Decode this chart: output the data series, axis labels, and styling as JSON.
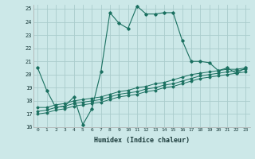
{
  "xlabel": "Humidex (Indice chaleur)",
  "bg_color": "#cce8e8",
  "grid_color": "#aacccc",
  "line_color": "#1a7060",
  "xlim": [
    -0.5,
    23.5
  ],
  "ylim": [
    16,
    25.3
  ],
  "xticks": [
    0,
    1,
    2,
    3,
    4,
    5,
    6,
    7,
    8,
    9,
    10,
    11,
    12,
    13,
    14,
    15,
    16,
    17,
    18,
    19,
    20,
    21,
    22,
    23
  ],
  "yticks": [
    16,
    17,
    18,
    19,
    20,
    21,
    22,
    23,
    24,
    25
  ],
  "series": [
    [
      20.5,
      18.8,
      17.5,
      17.6,
      18.3,
      16.2,
      17.4,
      20.2,
      24.7,
      23.9,
      23.5,
      25.2,
      24.6,
      24.6,
      24.7,
      24.7,
      22.6,
      21.0,
      21.0,
      20.9,
      20.3,
      20.5,
      20.1,
      20.5
    ],
    [
      17.5,
      17.5,
      17.7,
      17.8,
      18.0,
      18.1,
      18.2,
      18.3,
      18.5,
      18.7,
      18.8,
      19.0,
      19.1,
      19.3,
      19.4,
      19.6,
      19.8,
      20.0,
      20.1,
      20.2,
      20.3,
      20.4,
      20.4,
      20.5
    ],
    [
      17.2,
      17.3,
      17.5,
      17.6,
      17.8,
      17.9,
      18.0,
      18.1,
      18.3,
      18.5,
      18.6,
      18.7,
      18.9,
      19.0,
      19.2,
      19.3,
      19.5,
      19.7,
      19.9,
      20.0,
      20.1,
      20.2,
      20.3,
      20.4
    ],
    [
      17.0,
      17.1,
      17.3,
      17.4,
      17.6,
      17.7,
      17.8,
      17.9,
      18.1,
      18.3,
      18.4,
      18.5,
      18.7,
      18.8,
      19.0,
      19.1,
      19.3,
      19.5,
      19.7,
      19.8,
      19.9,
      20.0,
      20.1,
      20.2
    ]
  ]
}
